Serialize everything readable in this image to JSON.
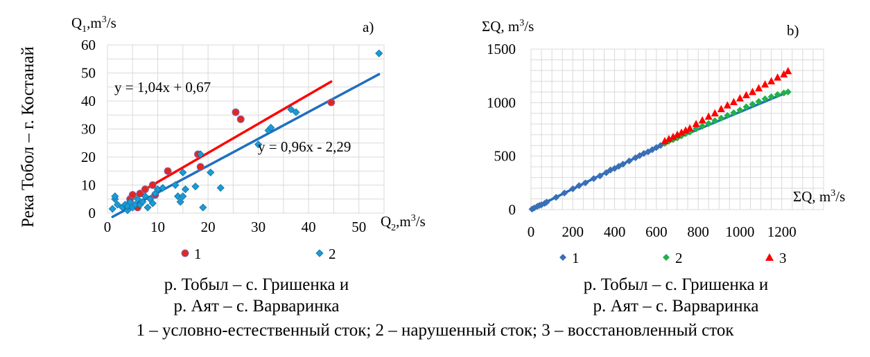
{
  "figure": {
    "side_label": "Река Тобол – г. Костанай",
    "caption_a_line1": "р. Тобыл – с. Гришенка и",
    "caption_a_line2": "р. Аят – с. Варваринка",
    "caption_b_line1": "р. Тобыл – с. Гришенка и",
    "caption_b_line2": "р. Аят – с. Варваринка",
    "footnote": "1 – условно-естественный сток; 2 – нарушенный сток; 3 – восстановленный сток"
  },
  "chart_data": [
    {
      "type": "scatter",
      "panel_label": "a)",
      "ylabel_base": "Q",
      "ylabel_sub": "1",
      "ylabel_unit": ",m",
      "ylabel_sup": "3",
      "ylabel_tail": "/s",
      "xlabel_base": "Q",
      "xlabel_sub": "2",
      "xlabel_unit": ",m",
      "xlabel_sup": "3",
      "xlabel_tail": "/s",
      "xlim": [
        0,
        55
      ],
      "ylim": [
        0,
        60
      ],
      "x_ticks": [
        0,
        10,
        20,
        30,
        40,
        50
      ],
      "y_ticks": [
        0,
        10,
        20,
        30,
        40,
        50,
        60
      ],
      "x_tick_labels": [
        "0",
        "10",
        "20",
        "30",
        "40",
        "50"
      ],
      "y_tick_labels": [
        "0",
        "10",
        "20",
        "30",
        "40",
        "50",
        "60"
      ],
      "grid": true,
      "series": [
        {
          "name": "1",
          "marker": "circle",
          "color": "#e52620",
          "points": [
            [
              4.5,
              5
            ],
            [
              5,
              6.5
            ],
            [
              6,
              2
            ],
            [
              6.5,
              7
            ],
            [
              7.5,
              8.5
            ],
            [
              9,
              10
            ],
            [
              9.5,
              6.5
            ],
            [
              12,
              15
            ],
            [
              18,
              21
            ],
            [
              18.5,
              16.5
            ],
            [
              25.5,
              36
            ],
            [
              26.5,
              33.5
            ],
            [
              44.5,
              39.5
            ]
          ]
        },
        {
          "name": "2",
          "marker": "diamond",
          "color": "#1a9bd7",
          "points": [
            [
              1,
              1.5
            ],
            [
              1.5,
              5
            ],
            [
              1.5,
              6
            ],
            [
              2,
              3
            ],
            [
              3,
              2
            ],
            [
              3.5,
              3
            ],
            [
              4,
              1
            ],
            [
              4,
              2.5
            ],
            [
              4.5,
              4
            ],
            [
              5,
              2
            ],
            [
              5.5,
              3
            ],
            [
              6,
              5
            ],
            [
              6.5,
              3
            ],
            [
              7,
              4
            ],
            [
              7.5,
              6
            ],
            [
              8,
              2
            ],
            [
              8.5,
              5
            ],
            [
              9,
              3.5
            ],
            [
              9.5,
              7
            ],
            [
              10,
              8.5
            ],
            [
              11,
              9
            ],
            [
              13.5,
              10
            ],
            [
              14,
              6
            ],
            [
              14.5,
              4
            ],
            [
              15,
              6
            ],
            [
              15,
              14.5
            ],
            [
              15.5,
              8.5
            ],
            [
              17.5,
              9.5
            ],
            [
              18.5,
              21
            ],
            [
              19,
              2
            ],
            [
              20.5,
              14.5
            ],
            [
              22.5,
              9
            ],
            [
              30,
              24.5
            ],
            [
              32,
              29.5
            ],
            [
              32.5,
              30.5
            ],
            [
              36.5,
              37
            ],
            [
              37.5,
              36
            ],
            [
              54,
              57
            ]
          ]
        }
      ],
      "trendlines": [
        {
          "series": "1",
          "color": "#ff0000",
          "slope": 1.04,
          "intercept": 0.67,
          "x_range": [
            4.5,
            44.5
          ],
          "equation": "y = 1,04x + 0,67"
        },
        {
          "series": "2",
          "color": "#1f6fbf",
          "slope": 0.96,
          "intercept": -2.29,
          "x_range": [
            1,
            54
          ],
          "equation": "y = 0,96x - 2,29"
        }
      ],
      "legend": [
        {
          "label": "1",
          "marker": "circle",
          "color": "#e52620"
        },
        {
          "label": "2",
          "marker": "diamond",
          "color": "#1a9bd7"
        }
      ],
      "legend_position": "bottom"
    },
    {
      "type": "line",
      "panel_label": "b)",
      "ylabel": "ΣQ, m",
      "ylabel_sup": "3",
      "ylabel_tail": "/s",
      "xlabel": "ΣQ, m",
      "xlabel_sup": "3",
      "xlabel_tail": "/s",
      "xlim": [
        0,
        1400
      ],
      "ylim": [
        0,
        1500
      ],
      "x_ticks": [
        0,
        200,
        400,
        600,
        800,
        1000,
        1200
      ],
      "y_ticks": [
        0,
        500,
        1000,
        1500
      ],
      "x_tick_labels": [
        "0",
        "200",
        "400",
        "600",
        "800",
        "1000",
        "1200"
      ],
      "y_tick_labels": [
        "0",
        "500",
        "1000",
        "1500"
      ],
      "grid": true,
      "series": [
        {
          "name": "1",
          "marker": "diamond",
          "color": "#3a6fb5",
          "points": [
            [
              5,
              5
            ],
            [
              15,
              15
            ],
            [
              30,
              30
            ],
            [
              40,
              40
            ],
            [
              50,
              45
            ],
            [
              65,
              58
            ],
            [
              75,
              70
            ],
            [
              120,
              115
            ],
            [
              160,
              155
            ],
            [
              200,
              195
            ],
            [
              230,
              225
            ],
            [
              260,
              250
            ],
            [
              300,
              290
            ],
            [
              330,
              315
            ],
            [
              360,
              345
            ],
            [
              380,
              370
            ],
            [
              400,
              385
            ],
            [
              420,
              405
            ],
            [
              440,
              425
            ],
            [
              470,
              455
            ],
            [
              500,
              485
            ],
            [
              520,
              505
            ],
            [
              540,
              525
            ],
            [
              560,
              540
            ],
            [
              580,
              560
            ],
            [
              600,
              580
            ],
            [
              620,
              600
            ],
            [
              640,
              620
            ]
          ]
        },
        {
          "name": "2",
          "marker": "diamond",
          "color": "#22b04b",
          "points": [
            [
              640,
              620
            ],
            [
              660,
              640
            ],
            [
              680,
              655
            ],
            [
              700,
              670
            ],
            [
              720,
              690
            ],
            [
              740,
              710
            ],
            [
              760,
              725
            ],
            [
              790,
              755
            ],
            [
              820,
              780
            ],
            [
              850,
              805
            ],
            [
              880,
              830
            ],
            [
              910,
              855
            ],
            [
              940,
              880
            ],
            [
              970,
              905
            ],
            [
              1000,
              930
            ],
            [
              1030,
              960
            ],
            [
              1060,
              985
            ],
            [
              1090,
              1010
            ],
            [
              1120,
              1035
            ],
            [
              1150,
              1055
            ],
            [
              1180,
              1075
            ],
            [
              1210,
              1090
            ],
            [
              1230,
              1100
            ]
          ]
        },
        {
          "name": "3",
          "marker": "triangle",
          "color": "#ff0000",
          "points": [
            [
              640,
              640
            ],
            [
              660,
              660
            ],
            [
              680,
              680
            ],
            [
              700,
              700
            ],
            [
              720,
              720
            ],
            [
              740,
              740
            ],
            [
              760,
              760
            ],
            [
              790,
              800
            ],
            [
              820,
              835
            ],
            [
              850,
              870
            ],
            [
              880,
              900
            ],
            [
              910,
              940
            ],
            [
              940,
              975
            ],
            [
              970,
              1005
            ],
            [
              1000,
              1040
            ],
            [
              1030,
              1070
            ],
            [
              1060,
              1100
            ],
            [
              1090,
              1135
            ],
            [
              1120,
              1170
            ],
            [
              1150,
              1200
            ],
            [
              1180,
              1235
            ],
            [
              1210,
              1265
            ],
            [
              1230,
              1295
            ]
          ]
        }
      ],
      "trendlines": [
        {
          "series": "1",
          "color": "#1f6fbf",
          "points": [
            [
              0,
              0
            ],
            [
              640,
              620
            ],
            [
              1230,
              1100
            ]
          ]
        }
      ],
      "legend": [
        {
          "label": "1",
          "marker": "diamond",
          "color": "#3a6fb5"
        },
        {
          "label": "2",
          "marker": "diamond",
          "color": "#22b04b"
        },
        {
          "label": "3",
          "marker": "triangle",
          "color": "#ff0000"
        }
      ],
      "legend_position": "bottom"
    }
  ]
}
